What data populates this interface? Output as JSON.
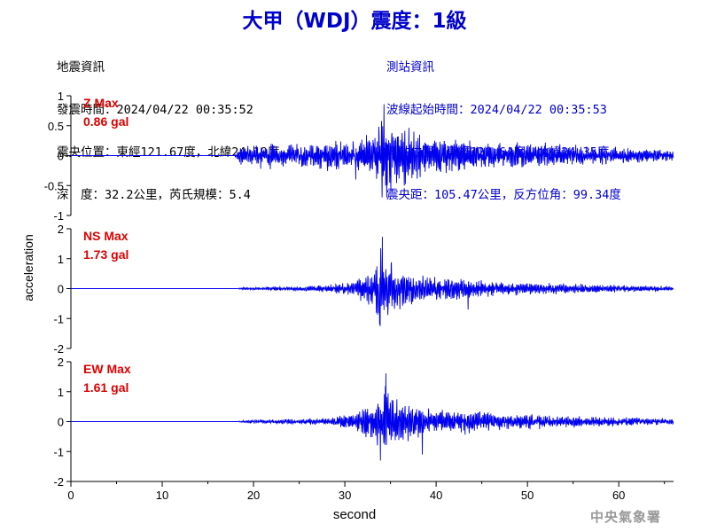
{
  "title": "大甲（WDJ）震度：1級",
  "colors": {
    "title": "#0000cc",
    "trace": "#0000ee",
    "peak_label": "#dd0000",
    "station_info": "#0000cc",
    "event_info": "#000000",
    "axis": "#000000",
    "agency": "#999999"
  },
  "event_info": {
    "heading": "地震資訊",
    "origin_time": "發震時間：2024/04/22 00:35:52",
    "epicenter": "震央位置：東經121.67度，北緯24.19度",
    "depth_magnitude": "深　度：32.2公里，芮氏規模：5.4"
  },
  "station_info": {
    "heading": "測站資訊",
    "wave_start": "波線起始時間：2024/04/22 00:35:53",
    "location": "測站位置：東經120.64度，北緯24.35度",
    "distance_azimuth": "震央距：105.47公里，反方位角：99.34度"
  },
  "ylabel": "acceleration",
  "xlabel": "second",
  "agency": "中央氣象署",
  "chart_data": {
    "type": "line",
    "x_range": [
      0,
      66
    ],
    "x_ticks": [
      "0",
      "10",
      "20",
      "30",
      "40",
      "50",
      "60"
    ],
    "grid": false,
    "panels": [
      {
        "name": "Z",
        "max_label": "Z Max",
        "max_value": "0.86 gal",
        "ylim": [
          -1,
          1
        ],
        "y_ticks": [
          "1",
          "0.5",
          "0",
          "-0.5",
          "-1"
        ],
        "envelope": [
          [
            0,
            0.0
          ],
          [
            17.9,
            0.0
          ],
          [
            18.0,
            0.05
          ],
          [
            18.6,
            0.2
          ],
          [
            20,
            0.22
          ],
          [
            22,
            0.25
          ],
          [
            24,
            0.22
          ],
          [
            27,
            0.28
          ],
          [
            30,
            0.3
          ],
          [
            32,
            0.34
          ],
          [
            33.5,
            0.5
          ],
          [
            34.3,
            0.86
          ],
          [
            35,
            0.75
          ],
          [
            36,
            0.55
          ],
          [
            38,
            0.45
          ],
          [
            40,
            0.35
          ],
          [
            43,
            0.28
          ],
          [
            47,
            0.27
          ],
          [
            50,
            0.25
          ],
          [
            55,
            0.2
          ],
          [
            60,
            0.17
          ],
          [
            66,
            0.12
          ]
        ],
        "peaks": [
          [
            34.3,
            0.86
          ],
          [
            34.6,
            -0.7
          ],
          [
            36.5,
            -0.5
          ],
          [
            31.2,
            -0.4
          ]
        ]
      },
      {
        "name": "NS",
        "max_label": "NS Max",
        "max_value": "1.73 gal",
        "ylim": [
          -2,
          2
        ],
        "y_ticks": [
          "2",
          "1",
          "0",
          "-1",
          "-2"
        ],
        "envelope": [
          [
            0,
            0.0
          ],
          [
            18.2,
            0.0
          ],
          [
            18.4,
            0.03
          ],
          [
            20,
            0.07
          ],
          [
            24,
            0.09
          ],
          [
            28,
            0.14
          ],
          [
            31,
            0.3
          ],
          [
            32.5,
            0.6
          ],
          [
            33.5,
            1.1
          ],
          [
            34.1,
            1.73
          ],
          [
            35,
            1.2
          ],
          [
            36,
            0.9
          ],
          [
            37.5,
            0.7
          ],
          [
            39,
            0.55
          ],
          [
            42,
            0.45
          ],
          [
            45,
            0.32
          ],
          [
            48,
            0.28
          ],
          [
            52,
            0.22
          ],
          [
            56,
            0.18
          ],
          [
            60,
            0.15
          ],
          [
            66,
            0.08
          ]
        ],
        "peaks": [
          [
            34.1,
            1.73
          ],
          [
            33.8,
            -1.2
          ],
          [
            43.5,
            -0.7
          ]
        ]
      },
      {
        "name": "EW",
        "max_label": "EW Max",
        "max_value": "1.61 gal",
        "ylim": [
          -2,
          2
        ],
        "y_ticks": [
          "2",
          "1",
          "0",
          "-1",
          "-2"
        ],
        "envelope": [
          [
            0,
            0.0
          ],
          [
            18.2,
            0.0
          ],
          [
            18.4,
            0.03
          ],
          [
            20,
            0.08
          ],
          [
            24,
            0.1
          ],
          [
            28,
            0.14
          ],
          [
            31,
            0.35
          ],
          [
            32.5,
            0.8
          ],
          [
            33.5,
            1.1
          ],
          [
            34.5,
            1.61
          ],
          [
            35.5,
            1.0
          ],
          [
            37,
            0.75
          ],
          [
            39,
            0.55
          ],
          [
            41,
            0.5
          ],
          [
            43,
            0.45
          ],
          [
            46,
            0.38
          ],
          [
            50,
            0.3
          ],
          [
            55,
            0.22
          ],
          [
            60,
            0.18
          ],
          [
            66,
            0.1
          ]
        ],
        "peaks": [
          [
            34.5,
            1.61
          ],
          [
            33.9,
            -1.3
          ],
          [
            38.5,
            -1.1
          ]
        ]
      }
    ]
  }
}
